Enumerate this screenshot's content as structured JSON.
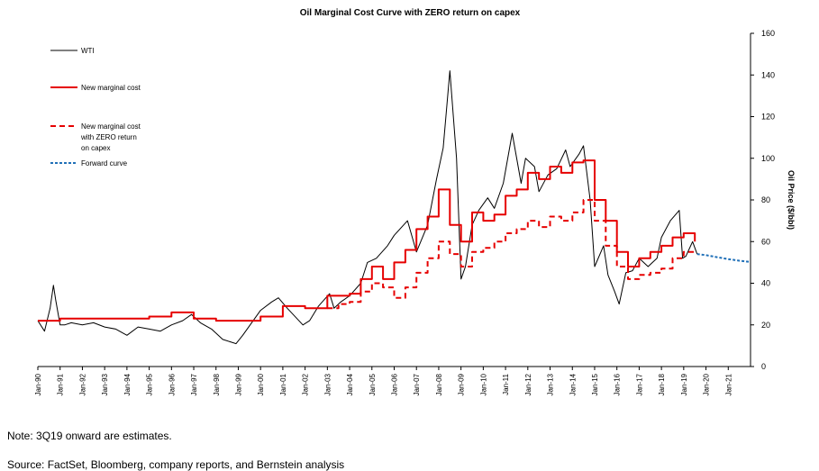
{
  "chart_data": {
    "type": "line",
    "title": "Oil Marginal Cost Curve with ZERO return on capex",
    "ylabel": "Oil Price ($/bbl)",
    "xlabel": "",
    "ylim": [
      0,
      160
    ],
    "yticks": [
      0,
      20,
      40,
      60,
      80,
      100,
      120,
      140,
      160
    ],
    "xlim": [
      1990.0,
      2022.0
    ],
    "xtick_labels": [
      "Jan-90",
      "Jan-91",
      "Jan-92",
      "Jan-93",
      "Jan-94",
      "Jan-95",
      "Jan-96",
      "Jan-97",
      "Jan-98",
      "Jan-99",
      "Jan-00",
      "Jan-01",
      "Jan-02",
      "Jan-03",
      "Jan-04",
      "Jan-05",
      "Jan-06",
      "Jan-07",
      "Jan-08",
      "Jan-09",
      "Jan-10",
      "Jan-11",
      "Jan-12",
      "Jan-13",
      "Jan-14",
      "Jan-15",
      "Jan-16",
      "Jan-17",
      "Jan-18",
      "Jan-19",
      "Jan-20",
      "Jan-21"
    ],
    "grid": false,
    "legend_position": "top-left",
    "series": [
      {
        "name": "WTI",
        "color": "#000000",
        "style": "solid",
        "x": [
          1990.0,
          1990.3,
          1990.55,
          1990.7,
          1990.8,
          1991.0,
          1991.2,
          1991.5,
          1992.0,
          1992.5,
          1993.0,
          1993.5,
          1994.0,
          1994.5,
          1995.0,
          1995.5,
          1996.0,
          1996.5,
          1996.9,
          1997.3,
          1997.8,
          1998.3,
          1998.9,
          1999.2,
          1999.6,
          2000.0,
          2000.5,
          2000.8,
          2001.2,
          2001.9,
          2002.2,
          2002.6,
          2003.1,
          2003.3,
          2003.6,
          2004.0,
          2004.5,
          2004.8,
          2005.2,
          2005.7,
          2006.0,
          2006.6,
          2007.0,
          2007.5,
          2007.9,
          2008.2,
          2008.5,
          2008.8,
          2009.0,
          2009.2,
          2009.5,
          2009.8,
          2010.2,
          2010.5,
          2010.9,
          2011.3,
          2011.7,
          2011.9,
          2012.3,
          2012.5,
          2012.9,
          2013.3,
          2013.7,
          2013.9,
          2014.3,
          2014.5,
          2014.8,
          2015.0,
          2015.4,
          2015.6,
          2015.9,
          2016.1,
          2016.4,
          2016.7,
          2017.0,
          2017.4,
          2017.8,
          2018.0,
          2018.4,
          2018.8,
          2018.95,
          2019.1,
          2019.4,
          2019.6
        ],
        "y": [
          22,
          17,
          28,
          39,
          32,
          20,
          20,
          21,
          20,
          21,
          19,
          18,
          15,
          19,
          18,
          17,
          20,
          22,
          25,
          21,
          18,
          13,
          11,
          15,
          21,
          27,
          31,
          33,
          28,
          20,
          22,
          29,
          35,
          28,
          31,
          34,
          40,
          50,
          52,
          58,
          63,
          70,
          55,
          68,
          90,
          105,
          142,
          100,
          42,
          48,
          68,
          75,
          81,
          76,
          88,
          112,
          88,
          100,
          96,
          84,
          92,
          95,
          104,
          96,
          102,
          106,
          80,
          48,
          58,
          44,
          36,
          30,
          45,
          46,
          52,
          48,
          52,
          62,
          70,
          75,
          52,
          53,
          60,
          54
        ]
      },
      {
        "name": "New marginal cost",
        "color": "#e60000",
        "style": "solid",
        "x": [
          1990.0,
          1991.0,
          1992.0,
          1993.0,
          1994.0,
          1995.0,
          1996.0,
          1997.0,
          1998.0,
          1999.0,
          2000.0,
          2001.0,
          2002.0,
          2003.0,
          2004.0,
          2004.5,
          2005.0,
          2005.5,
          2006.0,
          2006.5,
          2007.0,
          2007.5,
          2008.0,
          2008.5,
          2009.0,
          2009.5,
          2010.0,
          2010.5,
          2011.0,
          2011.5,
          2012.0,
          2012.5,
          2013.0,
          2013.5,
          2014.0,
          2014.5,
          2015.0,
          2015.5,
          2016.0,
          2016.5,
          2017.0,
          2017.5,
          2018.0,
          2018.5,
          2019.0,
          2019.5
        ],
        "y": [
          22,
          23,
          23,
          23,
          23,
          24,
          26,
          23,
          22,
          22,
          24,
          29,
          28,
          34,
          35,
          42,
          48,
          42,
          50,
          56,
          66,
          72,
          85,
          68,
          60,
          74,
          70,
          73,
          82,
          85,
          93,
          90,
          96,
          93,
          98,
          99,
          80,
          70,
          55,
          48,
          52,
          55,
          58,
          62,
          64,
          60
        ]
      },
      {
        "name": "New marginal cost with ZERO return on capex",
        "color": "#e60000",
        "style": "dashed",
        "x": [
          2003.0,
          2003.5,
          2004.0,
          2004.5,
          2005.0,
          2005.5,
          2006.0,
          2006.5,
          2007.0,
          2007.5,
          2008.0,
          2008.5,
          2009.0,
          2009.5,
          2010.0,
          2010.5,
          2011.0,
          2011.5,
          2012.0,
          2012.5,
          2013.0,
          2013.5,
          2014.0,
          2014.5,
          2015.0,
          2015.5,
          2016.0,
          2016.5,
          2017.0,
          2017.5,
          2018.0,
          2018.5,
          2019.0,
          2019.5
        ],
        "y": [
          28,
          30,
          31,
          36,
          40,
          38,
          33,
          38,
          45,
          52,
          60,
          54,
          48,
          55,
          57,
          60,
          64,
          66,
          70,
          67,
          72,
          70,
          74,
          80,
          70,
          58,
          48,
          42,
          44,
          45,
          47,
          52,
          55,
          54
        ]
      },
      {
        "name": "Forward curve",
        "color": "#2070b8",
        "style": "dashed",
        "x": [
          2019.6,
          2020.0,
          2020.5,
          2021.0,
          2021.5,
          2022.0
        ],
        "y": [
          54,
          53.5,
          52.5,
          51.6,
          50.8,
          50.2
        ]
      }
    ]
  },
  "legend": {
    "wti": "WTI",
    "new_marginal_cost": "New marginal cost",
    "zero_return_line1": "New marginal cost",
    "zero_return_line2": "with ZERO return",
    "zero_return_line3": "on capex",
    "forward_curve": "Forward curve"
  },
  "notes": {
    "estimates": "Note: 3Q19  onward are estimates.",
    "source": "Source: FactSet, Bloomberg, company reports, and Bernstein analysis"
  }
}
